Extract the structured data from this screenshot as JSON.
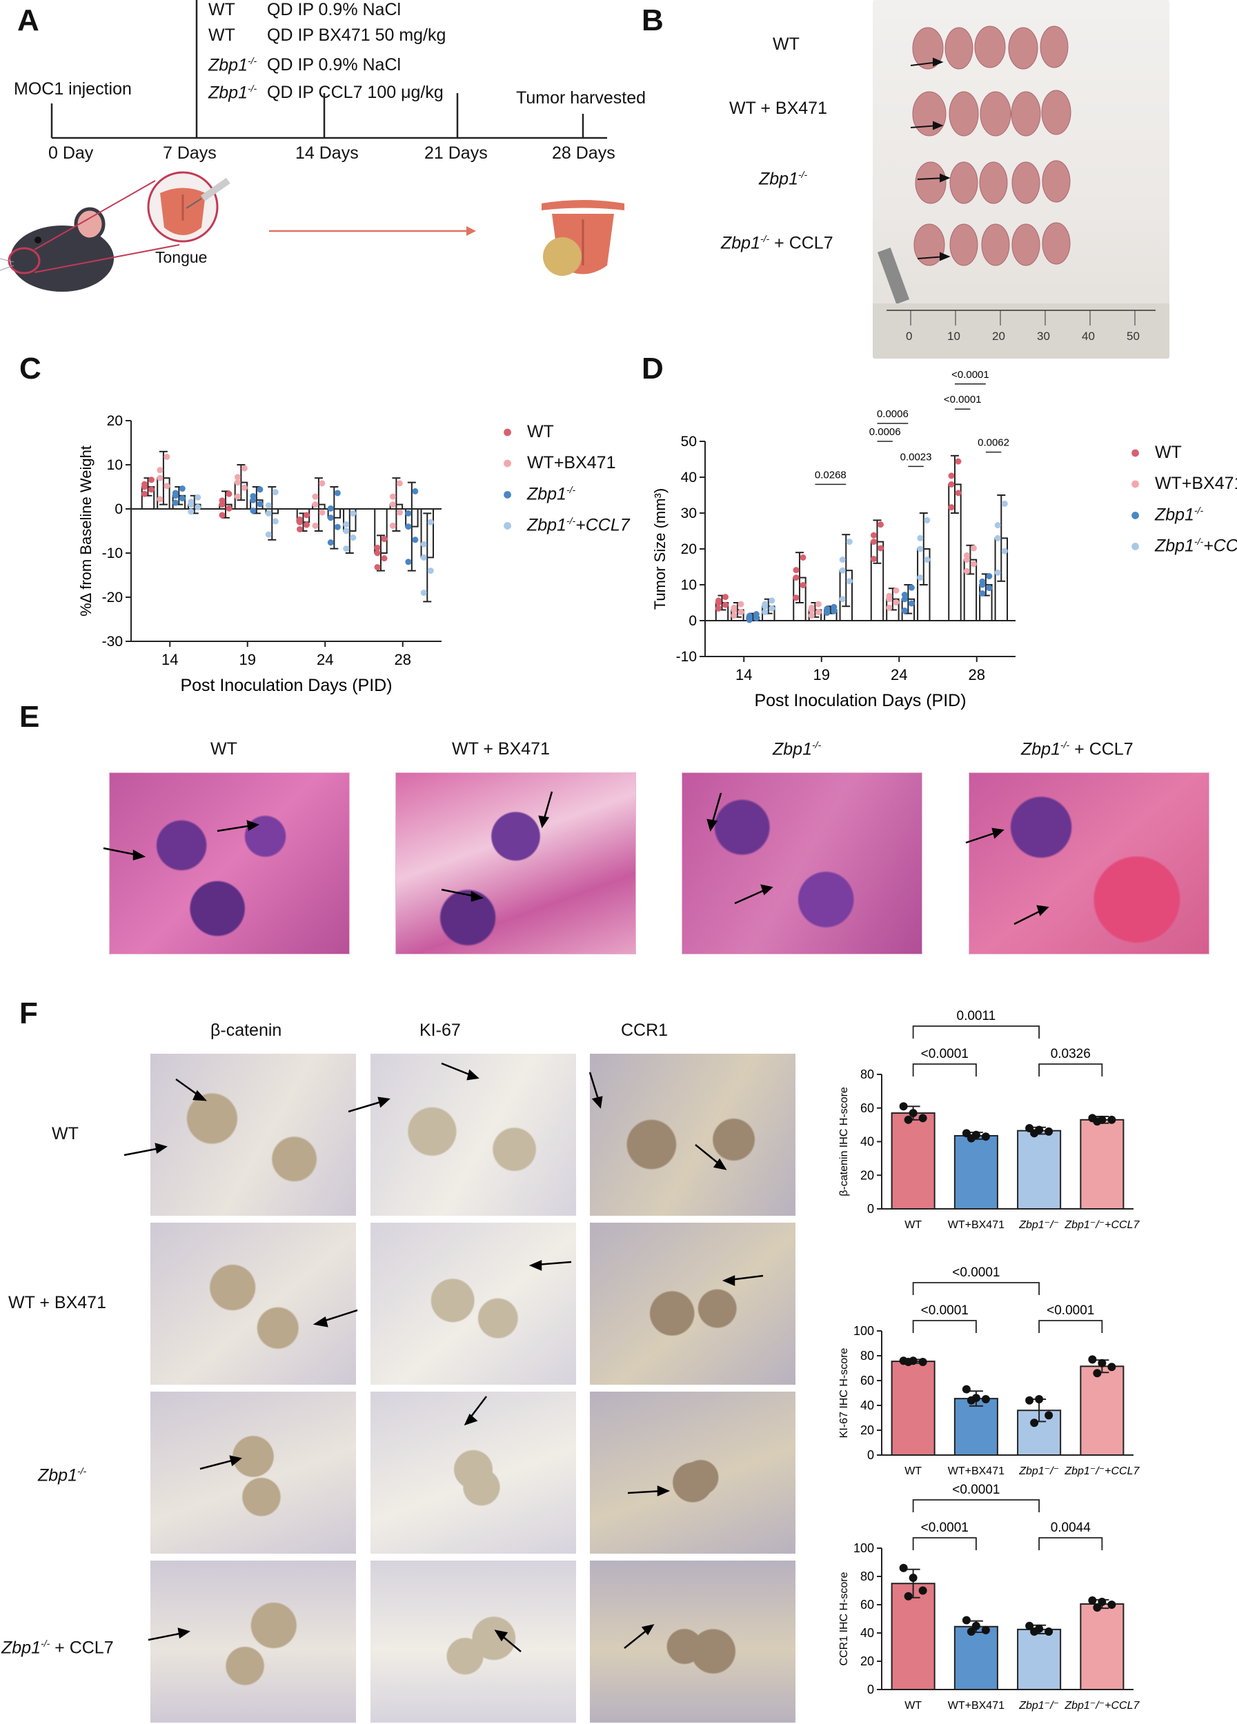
{
  "panels": {
    "A": "A",
    "B": "B",
    "C": "C",
    "D": "D",
    "E": "E",
    "F": "F"
  },
  "panelA": {
    "treatments": [
      {
        "group": "WT",
        "group_sup": "",
        "regimen": "QD IP 0.9% NaCl"
      },
      {
        "group": "WT",
        "group_sup": "",
        "regimen": "QD IP BX471 50 mg/kg"
      },
      {
        "group": "Zbp1",
        "group_sup": "-/-",
        "regimen": "QD IP 0.9% NaCl"
      },
      {
        "group": "Zbp1",
        "group_sup": "-/-",
        "regimen": "QD IP CCL7 100 μg/kg"
      }
    ],
    "moc1": "MOC1 injection",
    "harvest": "Tumor harvested",
    "timepoints": [
      "0 Day",
      "7 Days",
      "14 Days",
      "21 Days",
      "28 Days"
    ],
    "tongue": "Tongue"
  },
  "panelB": {
    "rows": [
      {
        "main": "WT",
        "sup": "",
        "tail": ""
      },
      {
        "main": "WT + BX471",
        "sup": "",
        "tail": ""
      },
      {
        "main": "Zbp1",
        "sup": "-/-",
        "tail": ""
      },
      {
        "main": "Zbp1",
        "sup": "-/-",
        "tail": " + CCL7"
      }
    ],
    "ruler_numbers": [
      "0",
      "10",
      "20",
      "30",
      "40",
      "50"
    ]
  },
  "panelE": {
    "groups": [
      {
        "main": "WT",
        "sup": "",
        "tail": ""
      },
      {
        "main": "WT + BX471",
        "sup": "",
        "tail": ""
      },
      {
        "main": "Zbp1",
        "sup": "-/-",
        "tail": ""
      },
      {
        "main": "Zbp1",
        "sup": "-/-",
        "tail": " + CCL7"
      }
    ]
  },
  "panelF": {
    "stains": [
      "β-catenin",
      "KI-67",
      "CCR1"
    ],
    "rows": [
      {
        "main": "WT",
        "sup": "",
        "tail": ""
      },
      {
        "main": "WT + BX471",
        "sup": "",
        "tail": ""
      },
      {
        "main": "Zbp1",
        "sup": "-/-",
        "tail": ""
      },
      {
        "main": "Zbp1",
        "sup": "-/-",
        "tail": " + CCL7"
      }
    ]
  },
  "legend": {
    "C": [
      {
        "main": "WT",
        "sup": "",
        "tail": "",
        "color": "#d95f6e"
      },
      {
        "main": "WT+BX471",
        "sup": "",
        "tail": "",
        "color": "#f0a8ae"
      },
      {
        "main": "Zbp1",
        "sup": "-/-",
        "tail": "",
        "color": "#4a86c5"
      },
      {
        "main": "Zbp1",
        "sup": "-/-",
        "tail": "+CCL7",
        "color": "#a8c8e8"
      }
    ]
  },
  "colors": {
    "wt": "#d95f6e",
    "bx": "#f0a8ae",
    "zbp": "#4a86c5",
    "ccl": "#a8c8e8",
    "barWT": "#e07a84",
    "barBX": "#5b93cc",
    "barZbp": "#a9c6e6",
    "barCCL": "#efa2a5"
  },
  "chart_data": [
    {
      "id": "C",
      "type": "bar",
      "xlabel": "Post Inoculation Days (PID)",
      "ylabel": "%Δ from Baseline Weight",
      "ylim": [
        -30,
        20
      ],
      "yticks": [
        "20",
        "10",
        "0",
        "-10",
        "-20",
        "-30"
      ],
      "categories": [
        "14",
        "19",
        "24",
        "28"
      ],
      "series": [
        {
          "name": "WT",
          "values": [
            5,
            1,
            -3,
            -10
          ]
        },
        {
          "name": "WT+BX471",
          "values": [
            7,
            6,
            1,
            1
          ]
        },
        {
          "name": "Zbp1-/-",
          "values": [
            3,
            2,
            -2,
            -4
          ]
        },
        {
          "name": "Zbp1-/-+CCL7",
          "values": [
            1,
            -1,
            -5,
            -11
          ]
        }
      ],
      "errors": [
        [
          2,
          3,
          2,
          4
        ],
        [
          6,
          4,
          6,
          6
        ],
        [
          2,
          3,
          7,
          10
        ],
        [
          2,
          6,
          5,
          10
        ]
      ]
    },
    {
      "id": "D",
      "type": "bar",
      "xlabel": "Post Inoculation Days (PID)",
      "ylabel": "Tumor Size (mm³)",
      "ylim": [
        -10,
        50
      ],
      "yticks": [
        "50",
        "40",
        "30",
        "20",
        "10",
        "0",
        "-10"
      ],
      "categories": [
        "14",
        "19",
        "24",
        "28"
      ],
      "series": [
        {
          "name": "WT",
          "values": [
            5,
            12,
            22,
            38
          ]
        },
        {
          "name": "WT+BX471",
          "values": [
            3,
            3,
            6,
            17
          ]
        },
        {
          "name": "Zbp1-/-",
          "values": [
            1,
            3,
            6,
            10
          ]
        },
        {
          "name": "Zbp1-/-+CCL7",
          "values": [
            4,
            14,
            20,
            23
          ]
        }
      ],
      "errors": [
        [
          2,
          7,
          6,
          8
        ],
        [
          2,
          2,
          3,
          4
        ],
        [
          1,
          1,
          4,
          3
        ],
        [
          2,
          10,
          10,
          12
        ]
      ],
      "annotations": [
        {
          "pair": "19 WT+BX471 vs Zbp1-/-+CCL7",
          "p": "0.0268"
        },
        {
          "pair": "24 WT vs WT+BX471",
          "p": "0.0006"
        },
        {
          "pair": "24 WT vs Zbp1-/-",
          "p": "0.0006"
        },
        {
          "pair": "24 Zbp1-/- vs Zbp1-/-+CCL7",
          "p": "0.0023"
        },
        {
          "pair": "28 WT vs WT+BX471",
          "p": "<0.0001"
        },
        {
          "pair": "28 WT vs Zbp1-/-",
          "p": "<0.0001"
        },
        {
          "pair": "28 Zbp1-/- vs Zbp1-/-+CCL7",
          "p": "0.0062"
        }
      ]
    },
    {
      "id": "F1",
      "type": "bar",
      "ylabel": "β-catenin IHC H-score",
      "ylim": [
        0,
        80
      ],
      "yticks": [
        "80",
        "60",
        "40",
        "20",
        "0"
      ],
      "categories": [
        "WT",
        "WT+BX471",
        "Zbp1-/-",
        "Zbp1-/-+CCL7"
      ],
      "values": [
        57,
        43.5,
        46.5,
        53
      ],
      "errors": [
        4,
        2,
        2,
        2
      ],
      "points": [
        [
          61,
          57,
          54,
          53
        ],
        [
          45,
          44,
          43,
          42
        ],
        [
          48,
          47,
          46,
          45
        ],
        [
          54,
          53,
          53,
          52
        ]
      ],
      "annotations": [
        {
          "pair": "WT vs Zbp1-/-",
          "p": "0.0011"
        },
        {
          "pair": "WT vs WT+BX471",
          "p": "<0.0001"
        },
        {
          "pair": "Zbp1-/- vs Zbp1-/-+CCL7",
          "p": "0.0326"
        }
      ]
    },
    {
      "id": "F2",
      "type": "bar",
      "ylabel": "KI-67 IHC H-score",
      "ylim": [
        0,
        100
      ],
      "yticks": [
        "100",
        "80",
        "60",
        "40",
        "20",
        "0"
      ],
      "categories": [
        "WT",
        "WT+BX471",
        "Zbp1-/-",
        "Zbp1-/-+CCL7"
      ],
      "values": [
        75.5,
        45.5,
        36,
        71.5
      ],
      "errors": [
        1.5,
        6,
        9,
        5
      ],
      "points": [
        [
          76,
          76,
          75,
          75
        ],
        [
          53,
          46,
          45,
          44
        ],
        [
          44,
          45,
          32,
          26
        ],
        [
          77,
          74,
          71,
          66
        ]
      ],
      "annotations": [
        {
          "pair": "WT vs Zbp1-/-",
          "p": "<0.0001"
        },
        {
          "pair": "WT vs WT+BX471",
          "p": "<0.0001"
        },
        {
          "pair": "Zbp1-/- vs Zbp1-/-+CCL7",
          "p": "<0.0001"
        }
      ]
    },
    {
      "id": "F3",
      "type": "bar",
      "ylabel": "CCR1 IHC H-score",
      "ylim": [
        0,
        100
      ],
      "yticks": [
        "100",
        "80",
        "60",
        "40",
        "20",
        "0"
      ],
      "categories": [
        "WT",
        "WT+BX471",
        "Zbp1-/-",
        "Zbp1-/-+CCL7"
      ],
      "values": [
        75,
        44.5,
        42.5,
        60.5
      ],
      "errors": [
        10,
        4,
        3,
        3
      ],
      "points": [
        [
          86,
          79,
          70,
          66
        ],
        [
          49,
          45,
          42,
          41
        ],
        [
          45,
          43,
          41,
          41
        ],
        [
          63,
          62,
          60,
          58
        ]
      ],
      "annotations": [
        {
          "pair": "WT vs Zbp1-/-",
          "p": "<0.0001"
        },
        {
          "pair": "WT vs WT+BX471",
          "p": "<0.0001"
        },
        {
          "pair": "Zbp1-/- vs Zbp1-/-+CCL7",
          "p": "0.0044"
        }
      ]
    }
  ]
}
